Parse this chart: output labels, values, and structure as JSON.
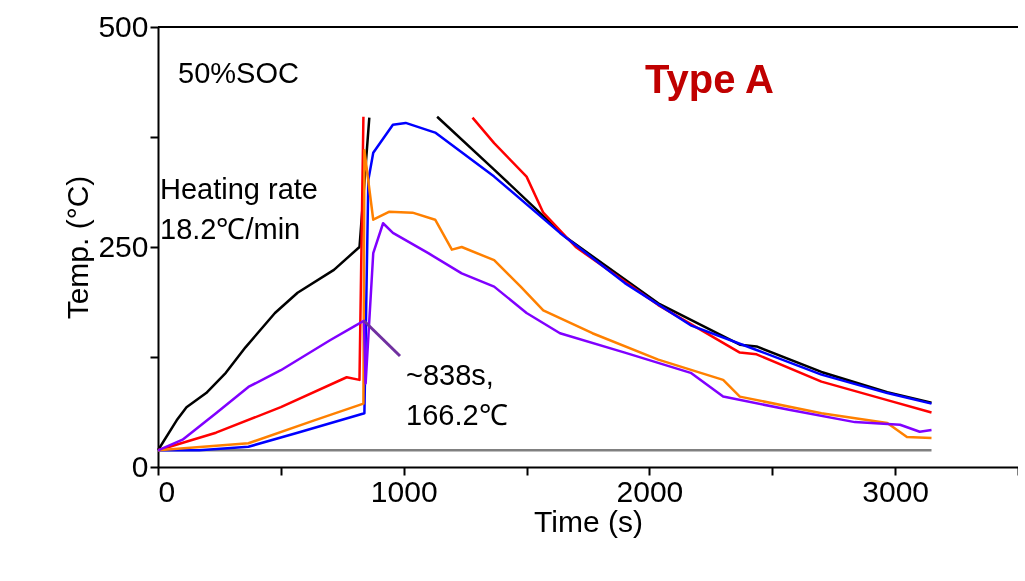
{
  "chart_data": {
    "type": "line",
    "xlabel": "Time (s)",
    "ylabel": "Temp. (°C)",
    "xlim": [
      0,
      3500
    ],
    "xticks": [
      0,
      {
        "value": 500,
        "label": null
      },
      1000,
      {
        "value": 1500,
        "label": null
      },
      2000,
      {
        "value": 2500,
        "label": null
      },
      3000,
      {
        "value": 3500,
        "label": null
      }
    ],
    "ylim": [
      0,
      500
    ],
    "yticks": [
      0,
      {
        "value": 125,
        "label": null
      },
      250,
      {
        "value": 375,
        "label": null
      },
      500
    ],
    "grid": false,
    "legend": false,
    "marker": "none",
    "line_style": "solid",
    "annotations": [
      "50%SOC",
      "Type A",
      "Heating rate\n18.2℃/min",
      {
        "text": "~838s,\n166.2℃",
        "x": 838,
        "y": 166.2
      }
    ],
    "series": [
      {
        "color": "#808080",
        "x": [
          0,
          500,
          1000,
          1500,
          2000,
          2500,
          3148
        ],
        "values": [
          19,
          19,
          19,
          19,
          19,
          19,
          19
        ]
      },
      {
        "color": "#000000",
        "x": [
          0,
          76,
          116,
          196,
          276,
          356,
          476,
          568,
          716,
          820,
          860,
          1000,
          1136,
          1368,
          1660,
          2036,
          2368,
          2436,
          2700,
          2968,
          3148
        ],
        "values": [
          19,
          53,
          68,
          84,
          107,
          136,
          175,
          198,
          224,
          250,
          397,
          null,
          398,
          338,
          261,
          186,
          139,
          137,
          108,
          85,
          73
        ]
      },
      {
        "color": "#ff0000",
        "x": [
          0,
          236,
          500,
          768,
          820,
          836,
          1000,
          1280,
          1368,
          1500,
          1568,
          1700,
          2036,
          2368,
          2436,
          2700,
          2968,
          3148
        ],
        "values": [
          19,
          39,
          68,
          102,
          99,
          398,
          null,
          397,
          368,
          330,
          289,
          250,
          184,
          130,
          128,
          97,
          76,
          62
        ]
      },
      {
        "color": "#0000ff",
        "x": [
          0,
          168,
          368,
          568,
          840,
          856,
          876,
          956,
          1008,
          1128,
          1368,
          1636,
          1900,
          2168,
          2436,
          2700,
          2968,
          3148
        ],
        "values": [
          19,
          19,
          23,
          39,
          61,
          326,
          357,
          389,
          391,
          380,
          330,
          266,
          209,
          161,
          133,
          105,
          84,
          72
        ]
      },
      {
        "color": "#ff8000",
        "x": [
          0,
          368,
          636,
          836,
          840,
          876,
          940,
          1036,
          1128,
          1196,
          1236,
          1368,
          1476,
          1568,
          1768,
          2036,
          2300,
          2368,
          2700,
          2968,
          3048,
          3148
        ],
        "values": [
          19,
          27,
          53,
          72,
          360,
          281,
          290,
          289,
          281,
          247,
          250,
          235,
          205,
          178,
          152,
          122,
          99,
          80,
          61,
          50,
          34,
          33
        ]
      },
      {
        "color": "#8000ff",
        "x": [
          0,
          100,
          236,
          368,
          500,
          700,
          800,
          838,
          845,
          876,
          916,
          956,
          1100,
          1236,
          1368,
          1500,
          1636,
          1900,
          2168,
          2300,
          2568,
          2836,
          3020,
          3100,
          3148
        ],
        "values": [
          19,
          31,
          61,
          91,
          110,
          144,
          160,
          166.2,
          95,
          243,
          277,
          266,
          243,
          220,
          205,
          175,
          152,
          130,
          107,
          80,
          65,
          51,
          48,
          40,
          42
        ]
      }
    ]
  }
}
